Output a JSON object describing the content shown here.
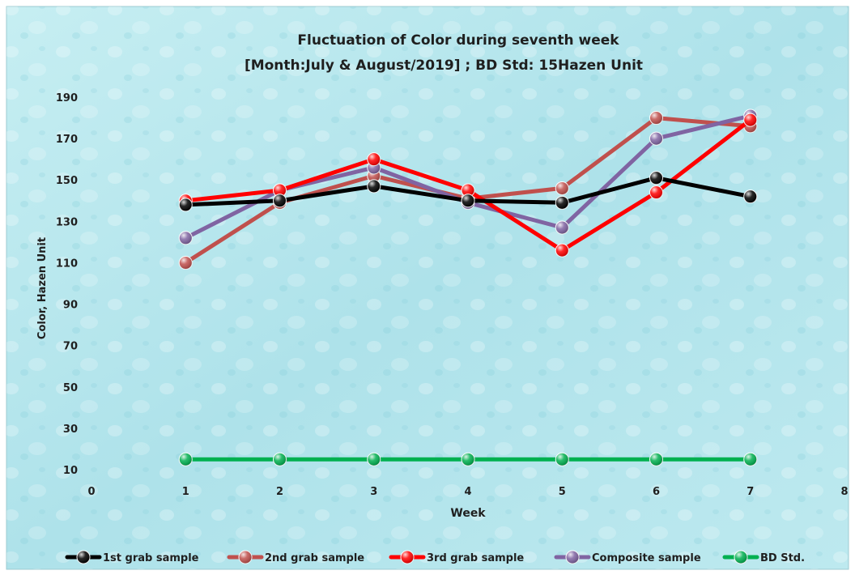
{
  "chart_data": {
    "type": "line",
    "title": "Fluctuation of Color during seventh week",
    "subtitle": "[Month:July & August/2019] ; BD Std: 15Hazen Unit",
    "xlabel": "Week",
    "ylabel": "Color, Hazen Unit",
    "xlim": [
      0,
      8
    ],
    "ylim": [
      10,
      190
    ],
    "x_ticks": [
      0,
      1,
      2,
      3,
      4,
      5,
      6,
      7,
      8
    ],
    "y_ticks": [
      10,
      30,
      50,
      70,
      90,
      110,
      130,
      150,
      170,
      190
    ],
    "x": [
      1,
      2,
      3,
      4,
      5,
      6,
      7
    ],
    "grid": false,
    "legend_position": "bottom",
    "series": [
      {
        "name": "1st grab sample",
        "color": "#000000",
        "values": [
          138,
          140,
          147,
          140,
          139,
          151,
          142
        ]
      },
      {
        "name": "2nd grab sample",
        "color": "#c0504d",
        "values": [
          110,
          139,
          152,
          141,
          146,
          180,
          176
        ]
      },
      {
        "name": "3rd grab sample",
        "color": "#ff0000",
        "values": [
          140,
          145,
          160,
          145,
          116,
          144,
          179
        ]
      },
      {
        "name": "Composite sample",
        "color": "#8064a2",
        "values": [
          122,
          145,
          156,
          139,
          127,
          170,
          181
        ]
      },
      {
        "name": "BD Std.",
        "color": "#00b050",
        "values": [
          15,
          15,
          15,
          15,
          15,
          15,
          15
        ]
      }
    ]
  }
}
